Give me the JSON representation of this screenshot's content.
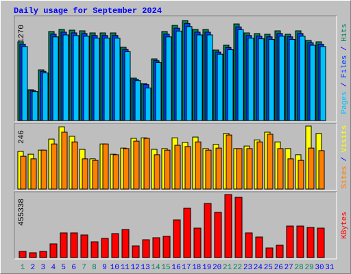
{
  "title": "Daily usage for September 2024",
  "chart_data": [
    {
      "type": "bar",
      "legend_separator": " / ",
      "series": [
        {
          "name": "Pages",
          "color": "#00C0FF",
          "values": [
            23150,
            9060,
            14900,
            26170,
            26780,
            26570,
            26380,
            25770,
            25770,
            25770,
            21540,
            12480,
            10200,
            18120,
            26170,
            27980,
            29390,
            26780,
            26780,
            20740,
            22150,
            28390,
            25770,
            25570,
            25370,
            26380,
            25370,
            26380,
            23560,
            23150,
            null
          ]
        },
        {
          "name": "Files",
          "color": "#0040FF",
          "values": [
            23890,
            9350,
            15370,
            27000,
            27640,
            27420,
            27220,
            26590,
            26590,
            26590,
            22230,
            12880,
            11220,
            18700,
            27000,
            28880,
            30330,
            27640,
            27640,
            21400,
            22850,
            29290,
            26590,
            26380,
            26180,
            27220,
            26180,
            27220,
            24310,
            23890,
            null
          ]
        },
        {
          "name": "Hits",
          "color": "#00805C",
          "values": [
            24630,
            9640,
            15850,
            27840,
            28490,
            28270,
            28060,
            27410,
            27410,
            27410,
            22920,
            13280,
            11570,
            19280,
            27840,
            29770,
            31270,
            28490,
            28490,
            22060,
            23560,
            30200,
            27410,
            27200,
            26990,
            28060,
            26990,
            28060,
            25060,
            24630,
            null
          ]
        }
      ],
      "ylim": [
        0,
        31270
      ],
      "yticks": [
        31270
      ]
    },
    {
      "type": "bar",
      "legend_separator": " / ",
      "series": [
        {
          "name": "Sites",
          "color": "#FF8000",
          "values": [
            128,
            118,
            152,
            176,
            222,
            184,
            118,
            112,
            176,
            134,
            158,
            187,
            198,
            134,
            152,
            171,
            166,
            184,
            152,
            160,
            211,
            158,
            158,
            184,
            214,
            158,
            118,
            112,
            160,
            150,
            null
          ]
        },
        {
          "name": "Visits",
          "color": "#FFFF00",
          "values": [
            147,
            136,
            152,
            195,
            243,
            206,
            155,
            118,
            176,
            136,
            160,
            198,
            200,
            155,
            158,
            200,
            182,
            203,
            158,
            174,
            217,
            158,
            168,
            192,
            222,
            184,
            158,
            134,
            246,
            217,
            null
          ]
        }
      ],
      "ylim": [
        0,
        246
      ],
      "yticks": [
        246
      ]
    },
    {
      "type": "bar",
      "series": [
        {
          "name": "KBytes",
          "color": "#FF0000",
          "values": [
            44540,
            34650,
            44540,
            98990,
            178180,
            178180,
            163330,
            113840,
            138580,
            173230,
            202920,
            84140,
            128680,
            143530,
            153430,
            272210,
            356350,
            212820,
            391000,
            326660,
            455338,
            435540,
            178180,
            148480,
            69290,
            89090,
            227670,
            227670,
            217770,
            212820,
            null
          ]
        }
      ],
      "ylim": [
        0,
        455338
      ],
      "yticks": [
        455338
      ],
      "categories": [
        "1",
        "2",
        "3",
        "4",
        "5",
        "6",
        "7",
        "8",
        "9",
        "10",
        "11",
        "12",
        "13",
        "14",
        "15",
        "16",
        "17",
        "18",
        "19",
        "20",
        "21",
        "22",
        "23",
        "24",
        "25",
        "26",
        "27",
        "28",
        "29",
        "30",
        "31"
      ],
      "category_colors": [
        "#00805C",
        "#0000FF",
        "#0000FF",
        "#0000FF",
        "#0000FF",
        "#0000FF",
        "#00805C",
        "#00805C",
        "#0000FF",
        "#0000FF",
        "#0000FF",
        "#0000FF",
        "#0000FF",
        "#00805C",
        "#00805C",
        "#0000FF",
        "#0000FF",
        "#0000FF",
        "#0000FF",
        "#0000FF",
        "#00805C",
        "#00805C",
        "#0000FF",
        "#0000FF",
        "#0000FF",
        "#0000FF",
        "#0000FF",
        "#00805C",
        "#00805C",
        "#0000FF",
        "#0000FF"
      ]
    }
  ]
}
